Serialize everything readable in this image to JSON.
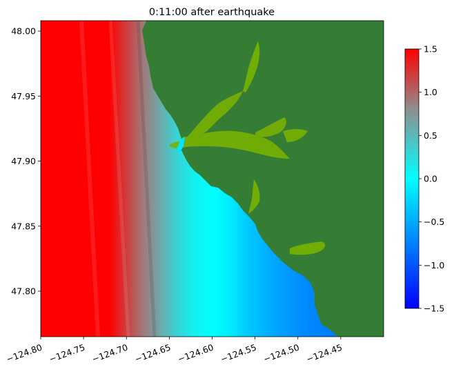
{
  "chart_data": {
    "type": "heatmap",
    "title": "0:11:00 after earthquake",
    "xlabel": "",
    "ylabel": "",
    "xlim": [
      -124.8,
      -124.4
    ],
    "ylim": [
      47.765,
      48.008
    ],
    "x_ticks": [
      -124.8,
      -124.75,
      -124.7,
      -124.65,
      -124.6,
      -124.55,
      -124.5,
      -124.45
    ],
    "x_tick_labels": [
      "−124.80",
      "−124.75",
      "−124.70",
      "−124.65",
      "−124.60",
      "−124.55",
      "−124.50",
      "−124.45"
    ],
    "y_ticks": [
      47.8,
      47.85,
      47.9,
      47.95,
      48.0
    ],
    "y_tick_labels": [
      "47.80",
      "47.85",
      "47.90",
      "47.95",
      "48.00"
    ],
    "colorbar": {
      "range": [
        -1.5,
        1.5
      ],
      "ticks": [
        -1.5,
        -1.0,
        -0.5,
        0.0,
        0.5,
        1.0,
        1.5
      ],
      "tick_labels": [
        "−1.5",
        "−1.0",
        "−0.5",
        "0.0",
        "0.5",
        "1.0",
        "1.5"
      ],
      "colormap": [
        {
          "value": -1.5,
          "color": "#0000ff"
        },
        {
          "value": -0.5,
          "color": "#00aaff"
        },
        {
          "value": 0.0,
          "color": "#00ffff"
        },
        {
          "value": 0.8,
          "color": "#8f8f8f"
        },
        {
          "value": 1.5,
          "color": "#ff0000"
        }
      ]
    },
    "land_color": "#357d34",
    "inundation_color": "#77b200",
    "wave_profile": [
      {
        "lon": -124.8,
        "value": 1.5
      },
      {
        "lon": -124.72,
        "value": 1.5
      },
      {
        "lon": -124.7,
        "value": 1.2
      },
      {
        "lon": -124.68,
        "value": 0.9
      },
      {
        "lon": -124.66,
        "value": 0.6
      },
      {
        "lon": -124.64,
        "value": 0.3
      },
      {
        "lon": -124.62,
        "value": 0.1
      },
      {
        "lon": -124.6,
        "value": 0.0
      },
      {
        "lon": -124.58,
        "value": -0.1
      },
      {
        "lon": -124.56,
        "value": -0.3
      },
      {
        "lon": -124.53,
        "value": -0.5
      },
      {
        "lon": -124.49,
        "value": -0.7
      },
      {
        "lon": -124.44,
        "value": -0.8
      }
    ]
  }
}
